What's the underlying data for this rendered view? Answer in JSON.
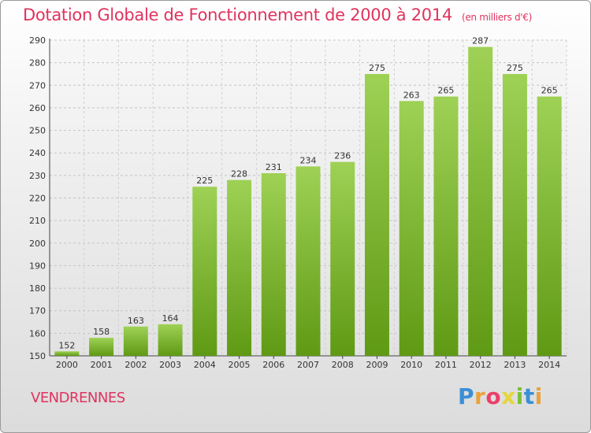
{
  "header": {
    "title": "Dotation Globale de Fonctionnement de 2000 à 2014",
    "unit": "(en milliers d'€)"
  },
  "footer": {
    "commune": "VENDRENNES",
    "logo": {
      "p": "P",
      "r": "r",
      "o": "o",
      "x": "x",
      "i": "i",
      "t": "t",
      "i2": "i"
    }
  },
  "colors": {
    "title": "#e0335e",
    "bar_light": "#9ed155",
    "bar_dark": "#5f9a14"
  },
  "chart_data": {
    "type": "bar",
    "title": "Dotation Globale de Fonctionnement de 2000 à 2014",
    "subtitle": "(en milliers d'€)",
    "categories": [
      "2000",
      "2001",
      "2002",
      "2003",
      "2004",
      "2005",
      "2006",
      "2007",
      "2008",
      "2009",
      "2010",
      "2011",
      "2012",
      "2013",
      "2014"
    ],
    "values": [
      152,
      158,
      163,
      164,
      225,
      228,
      231,
      234,
      236,
      275,
      263,
      265,
      287,
      275,
      265
    ],
    "ylim": [
      150,
      290
    ],
    "yticks": [
      150,
      160,
      170,
      180,
      190,
      200,
      210,
      220,
      230,
      240,
      250,
      260,
      270,
      280,
      290
    ],
    "grid": true,
    "xlabel": "",
    "ylabel": ""
  }
}
